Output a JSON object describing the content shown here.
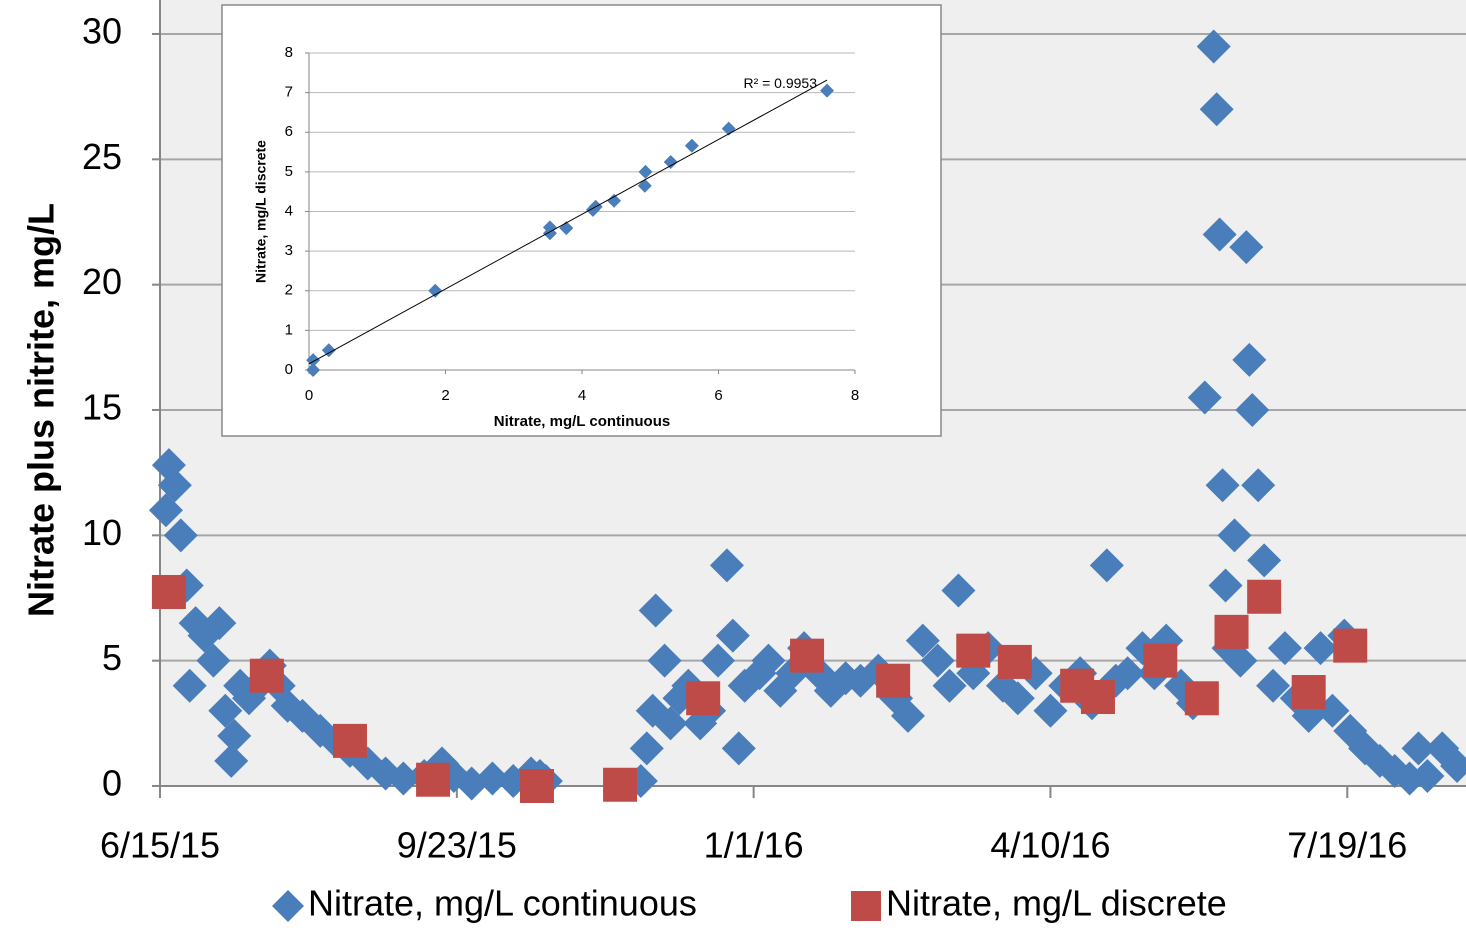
{
  "chart_data": [
    {
      "type": "scatter",
      "y_label": "Nitrate plus nitrite, mg/L",
      "xlim": [
        "2015-06-15",
        "2016-08-28"
      ],
      "xticks": [
        {
          "value": "2015-06-15",
          "label": "6/15/15"
        },
        {
          "value": "2015-09-23",
          "label": "9/23/15"
        },
        {
          "value": "2016-01-01",
          "label": "1/1/16"
        },
        {
          "value": "2016-04-10",
          "label": "4/10/16"
        },
        {
          "value": "2016-07-19",
          "label": "7/19/16"
        }
      ],
      "ylim": [
        0,
        30
      ],
      "yticks": [
        0,
        5,
        10,
        15,
        20,
        25,
        30
      ],
      "grid": true,
      "legend": "bottom",
      "series": [
        {
          "name": "Nitrate, mg/L continuous",
          "color": "#4a7ebb",
          "marker": "diamond",
          "x": [
            "2015-06-17",
            "2015-06-18",
            "2015-06-20",
            "2015-06-22",
            "2015-06-24",
            "2015-06-25",
            "2015-06-27",
            "2015-06-30",
            "2015-07-03",
            "2015-07-05",
            "2015-07-07",
            "2015-07-09",
            "2015-07-10",
            "2015-07-12",
            "2015-07-15",
            "2015-07-18",
            "2015-07-22",
            "2015-07-25",
            "2015-07-28",
            "2015-08-02",
            "2015-08-08",
            "2015-08-13",
            "2015-08-18",
            "2015-08-24",
            "2015-08-30",
            "2015-09-05",
            "2015-09-12",
            "2015-09-18",
            "2015-09-22",
            "2015-09-28",
            "2015-10-05",
            "2015-10-12",
            "2015-10-18",
            "2015-10-21",
            "2015-10-23",
            "2015-11-24",
            "2015-11-26",
            "2015-11-28",
            "2015-11-29",
            "2015-12-02",
            "2015-12-04",
            "2015-12-07",
            "2015-12-10",
            "2015-12-14",
            "2015-12-17",
            "2015-12-20",
            "2015-12-23",
            "2015-12-25",
            "2015-12-27",
            "2015-12-29",
            "2016-01-03",
            "2016-01-06",
            "2016-01-10",
            "2016-01-14",
            "2016-01-18",
            "2016-01-23",
            "2016-01-27",
            "2016-02-01",
            "2016-02-06",
            "2016-02-12",
            "2016-02-18",
            "2016-02-22",
            "2016-02-27",
            "2016-03-03",
            "2016-03-07",
            "2016-03-10",
            "2016-03-15",
            "2016-03-20",
            "2016-03-25",
            "2016-03-30",
            "2016-04-05",
            "2016-04-10",
            "2016-04-15",
            "2016-04-20",
            "2016-04-24",
            "2016-04-29",
            "2016-05-02",
            "2016-05-06",
            "2016-05-11",
            "2016-05-15",
            "2016-05-19",
            "2016-05-24",
            "2016-05-28",
            "2016-06-01",
            "2016-06-04",
            "2016-06-05",
            "2016-06-06",
            "2016-06-07",
            "2016-06-08",
            "2016-06-09",
            "2016-06-11",
            "2016-06-13",
            "2016-06-15",
            "2016-06-16",
            "2016-06-17",
            "2016-06-19",
            "2016-06-21",
            "2016-06-24",
            "2016-06-28",
            "2016-07-02",
            "2016-07-06",
            "2016-07-10",
            "2016-07-14",
            "2016-07-18",
            "2016-07-20",
            "2016-07-25",
            "2016-07-30",
            "2016-08-04",
            "2016-08-09",
            "2016-08-12",
            "2016-08-15",
            "2016-08-20",
            "2016-08-25"
          ],
          "values": [
            11,
            12.8,
            12,
            10,
            8,
            4,
            6.5,
            6,
            5,
            6.5,
            3,
            1,
            2,
            4,
            3.5,
            4,
            4.8,
            4,
            3.2,
            2.8,
            2.2,
            1.8,
            1.4,
            0.9,
            0.5,
            0.3,
            0.4,
            0.9,
            0.4,
            0.1,
            0.3,
            0.2,
            0.5,
            0.4,
            0.2,
            0.2,
            1.5,
            3,
            7,
            5,
            2.5,
            3.5,
            4,
            2.5,
            3,
            5,
            8.8,
            6,
            1.5,
            4,
            4.5,
            5,
            3.8,
            4.5,
            5.5,
            4.5,
            3.8,
            4.3,
            4.2,
            4.6,
            3.5,
            2.8,
            5.8,
            5,
            4,
            7.8,
            4.5,
            5.5,
            4,
            3.5,
            4.5,
            3,
            4,
            4.5,
            3.3,
            8.8,
            4.2,
            4.5,
            5.5,
            4.5,
            5.8,
            4,
            3.3,
            15.5,
            29.5,
            27,
            22,
            12,
            8,
            5.5,
            10,
            5,
            21.5,
            17,
            15,
            12,
            9,
            4,
            5.5,
            3.5,
            2.8,
            5.5,
            3,
            6,
            2.2,
            1.5,
            1,
            0.6,
            0.3,
            1.5,
            0.4,
            1.5,
            0.8
          ]
        },
        {
          "name": "Nitrate, mg/L discrete",
          "color": "#be4b48",
          "marker": "square",
          "x": [
            "2015-06-18",
            "2015-07-21",
            "2015-08-18",
            "2015-09-15",
            "2015-10-20",
            "2015-11-17",
            "2015-12-15",
            "2016-01-19",
            "2016-02-17",
            "2016-03-15",
            "2016-03-29",
            "2016-04-19",
            "2016-04-26",
            "2016-05-17",
            "2016-05-31",
            "2016-06-10",
            "2016-06-21",
            "2016-07-06",
            "2016-07-20"
          ],
          "values": [
            7.74,
            4.4,
            1.8,
            0.25,
            0,
            0.05,
            3.5,
            5.2,
            4.2,
            5.4,
            4.95,
            4.0,
            3.55,
            5.0,
            3.5,
            6.15,
            7.55,
            3.75,
            5.6
          ]
        }
      ]
    },
    {
      "type": "scatter",
      "x_label": "Nitrate, mg/L continuous",
      "y_label": "Nitrate, mg/L discrete",
      "annotation": "R² = 0.9953",
      "trendline": "linear",
      "xlim": [
        0,
        8
      ],
      "xticks": [
        0,
        2,
        4,
        6,
        8
      ],
      "ylim": [
        0,
        8
      ],
      "yticks": [
        0,
        1,
        2,
        3,
        4,
        5,
        6,
        7,
        8
      ],
      "grid": true,
      "series": [
        {
          "color": "#4a7ebb",
          "marker": "diamond",
          "x": [
            0.06,
            0.06,
            0.29,
            1.85,
            3.53,
            3.53,
            3.77,
            4.16,
            4.2,
            4.47,
            4.92,
            4.93,
            5.3,
            5.61,
            6.15,
            7.59
          ],
          "values": [
            0,
            0.25,
            0.5,
            2.0,
            3.6,
            3.45,
            3.58,
            4.04,
            4.12,
            4.27,
            4.65,
            5.0,
            5.25,
            5.66,
            6.09,
            7.05
          ]
        }
      ]
    }
  ]
}
